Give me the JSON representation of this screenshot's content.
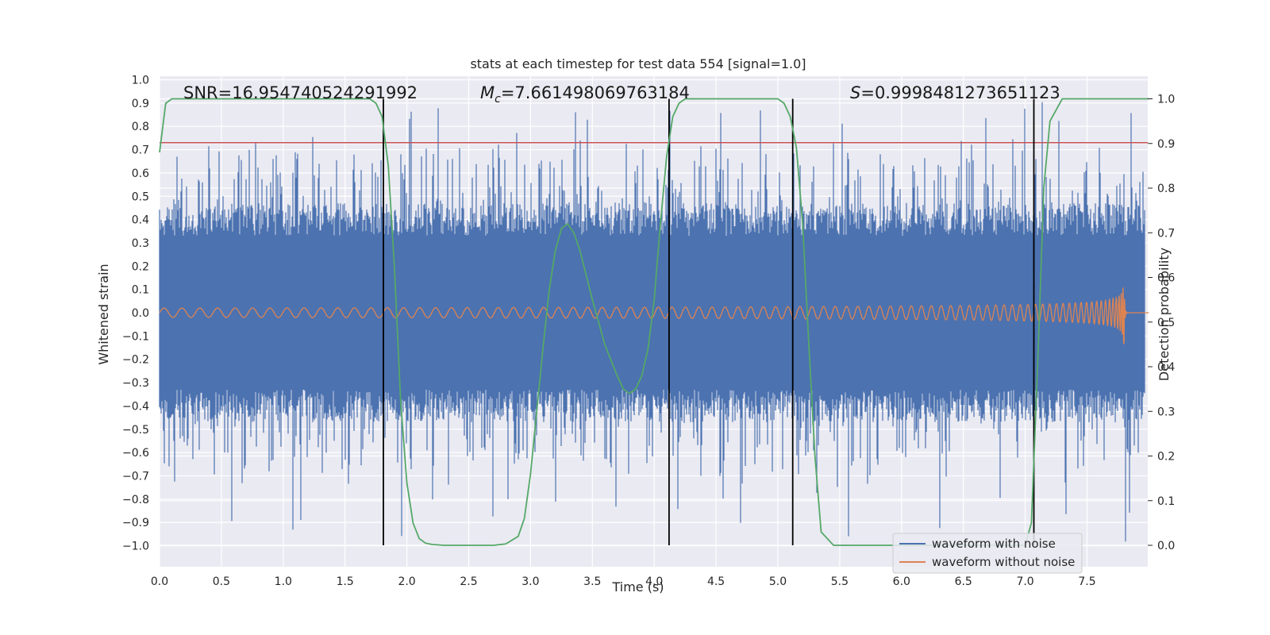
{
  "chart_data": {
    "type": "line",
    "title": "stats at each timestep for test data 554 [signal=1.0]",
    "xlabel": "Time (s)",
    "ylabel": "Whitened strain",
    "y2label": "Detection probability",
    "xlim": [
      0.0,
      8.0
    ],
    "ylim": [
      -1.09,
      1.0
    ],
    "y2lim": [
      -0.05,
      1.04
    ],
    "x_ticks": [
      "0.0",
      "0.5",
      "1.0",
      "1.5",
      "2.0",
      "2.5",
      "3.0",
      "3.5",
      "4.0",
      "4.5",
      "5.0",
      "5.5",
      "6.0",
      "6.5",
      "7.0",
      "7.5"
    ],
    "y_ticks": [
      "1.0",
      "0.9",
      "0.8",
      "0.7",
      "0.6",
      "0.5",
      "0.4",
      "0.3",
      "0.2",
      "0.1",
      "0.0",
      "−0.1",
      "−0.2",
      "−0.3",
      "−0.4",
      "−0.5",
      "−0.6",
      "−0.7",
      "−0.8",
      "−0.9",
      "−1.0"
    ],
    "y2_ticks": [
      "1.0",
      "0.9",
      "0.8",
      "0.7",
      "0.6",
      "0.5",
      "0.4",
      "0.3",
      "0.2",
      "0.1",
      "0.0"
    ],
    "grid": true,
    "legend_position": "bottom-right",
    "annotations": {
      "snr": "SNR=16.954740524291992",
      "mc_symbol": "M",
      "mc_subscript": "c",
      "mc_value": "=7.661498069763184",
      "s_symbol": "S",
      "s_value": "=0.9998481273651123"
    },
    "series": [
      {
        "name": "waveform with noise",
        "color": "#4c72b0",
        "axis": "left",
        "envelope": [
          -0.45,
          0.45
        ],
        "spikes_up_to": 0.92,
        "spikes_down_to": -1.0
      },
      {
        "name": "waveform without noise",
        "color": "#dd8452",
        "axis": "left",
        "chirp_start_time": 0.0,
        "merger_time": 7.8,
        "start_amplitude": 0.02,
        "peak_amplitude": 0.35
      },
      {
        "axis": "right",
        "color": "#55a868",
        "x": [
          0.0,
          0.05,
          0.1,
          0.15,
          1.7,
          1.75,
          1.8,
          1.85,
          1.9,
          1.95,
          2.0,
          2.05,
          2.1,
          2.15,
          2.2,
          2.3,
          2.5,
          2.7,
          2.8,
          2.9,
          2.95,
          3.0,
          3.05,
          3.1,
          3.15,
          3.2,
          3.25,
          3.3,
          3.35,
          3.4,
          3.5,
          3.6,
          3.7,
          3.75,
          3.8,
          3.85,
          3.9,
          3.95,
          4.0,
          4.05,
          4.1,
          4.15,
          4.2,
          4.25,
          4.3,
          4.35,
          4.45,
          5.0,
          5.05,
          5.1,
          5.15,
          5.2,
          5.25,
          5.3,
          5.35,
          5.45,
          7.0,
          7.05,
          7.1,
          7.15,
          7.2,
          7.3,
          8.0
        ],
        "y": [
          0.88,
          0.99,
          1.0,
          1.0,
          1.0,
          0.99,
          0.96,
          0.85,
          0.62,
          0.32,
          0.14,
          0.05,
          0.015,
          0.005,
          0.002,
          0.0,
          0.0,
          0.0,
          0.003,
          0.02,
          0.06,
          0.16,
          0.3,
          0.44,
          0.57,
          0.66,
          0.71,
          0.72,
          0.7,
          0.66,
          0.55,
          0.45,
          0.38,
          0.35,
          0.34,
          0.35,
          0.38,
          0.44,
          0.55,
          0.72,
          0.87,
          0.96,
          0.99,
          1.0,
          1.0,
          1.0,
          1.0,
          1.0,
          0.99,
          0.96,
          0.89,
          0.72,
          0.45,
          0.2,
          0.03,
          0.0,
          0.0,
          0.05,
          0.4,
          0.8,
          0.95,
          1.0,
          1.0
        ]
      },
      {
        "axis": "left",
        "color": "#c44e52",
        "constant_y": 0.73
      }
    ],
    "vertical_lines": [
      1.81,
      4.12,
      5.12,
      7.07
    ]
  }
}
